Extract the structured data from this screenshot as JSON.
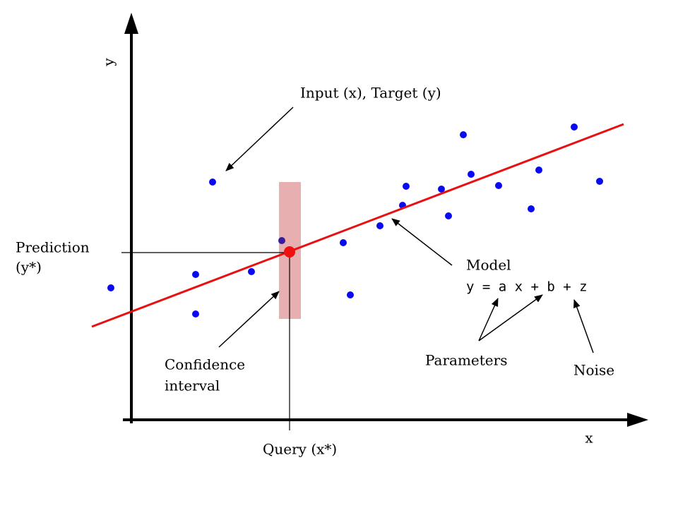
{
  "axes": {
    "y_label": "y",
    "x_label": "x"
  },
  "annotations": {
    "data_points": "Input (x), Target (y)",
    "prediction": [
      "Prediction",
      "(y*)"
    ],
    "model": "Model",
    "equation": "y = a x + b + z",
    "parameters": "Parameters",
    "noise": "Noise",
    "confidence": [
      "Confidence",
      "interval"
    ],
    "query": "Query (x*)"
  }
}
